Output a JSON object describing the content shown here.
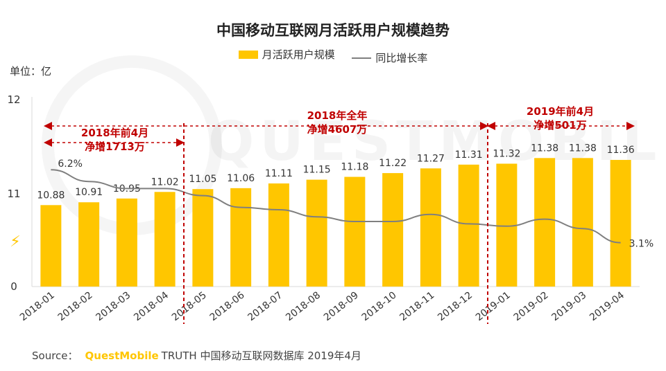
{
  "title": "中国移动互联网月活跃用户规模趋势",
  "unit_label": "单位：亿",
  "legend": {
    "bar_label": "月活跃用户规模",
    "line_label": "同比增长率"
  },
  "source": {
    "prefix": "Source：",
    "brand": "QuestMobile",
    "text": "TRUTH 中国移动互联网数据库 2019年4月"
  },
  "watermark_text": "QUESTMOBILE",
  "colors": {
    "bar": "#ffc600",
    "line": "#7f7f7f",
    "annotation": "#c00000"
  },
  "chart_data": {
    "type": "bar",
    "categories": [
      "2018-01",
      "2018-02",
      "2018-03",
      "2018-04",
      "2018-05",
      "2018-06",
      "2018-07",
      "2018-08",
      "2018-09",
      "2018-10",
      "2018-11",
      "2018-12",
      "2019-01",
      "2019-02",
      "2019-03",
      "2019-04"
    ],
    "series": [
      {
        "name": "月活跃用户规模",
        "type": "bar",
        "values": [
          10.88,
          10.91,
          10.95,
          11.02,
          11.05,
          11.06,
          11.11,
          11.15,
          11.18,
          11.22,
          11.27,
          11.31,
          11.32,
          11.38,
          11.38,
          11.36
        ],
        "labels": [
          "10.88",
          "10.91",
          "10.95",
          "11.02",
          "11.05",
          "11.06",
          "11.11",
          "11.15",
          "11.18",
          "11.22",
          "11.27",
          "11.31",
          "11.32",
          "11.38",
          "11.38",
          "11.36"
        ]
      },
      {
        "name": "同比增长率",
        "type": "line",
        "unit": "%",
        "values": [
          6.2,
          5.7,
          5.4,
          5.4,
          5.1,
          4.6,
          4.5,
          4.2,
          4.0,
          4.0,
          4.3,
          3.9,
          3.8,
          4.1,
          3.7,
          3.1
        ],
        "labels": {
          "0": "6.2%",
          "15": "3.1%"
        }
      }
    ],
    "yticks": [
      "12",
      "11",
      "0"
    ],
    "annotations": [
      {
        "text": [
          "2018年前4月",
          "净增1713万"
        ]
      },
      {
        "text": [
          "2018年全年",
          "净增4607万"
        ]
      },
      {
        "text": [
          "2019年前4月",
          "净增501万"
        ]
      }
    ]
  }
}
